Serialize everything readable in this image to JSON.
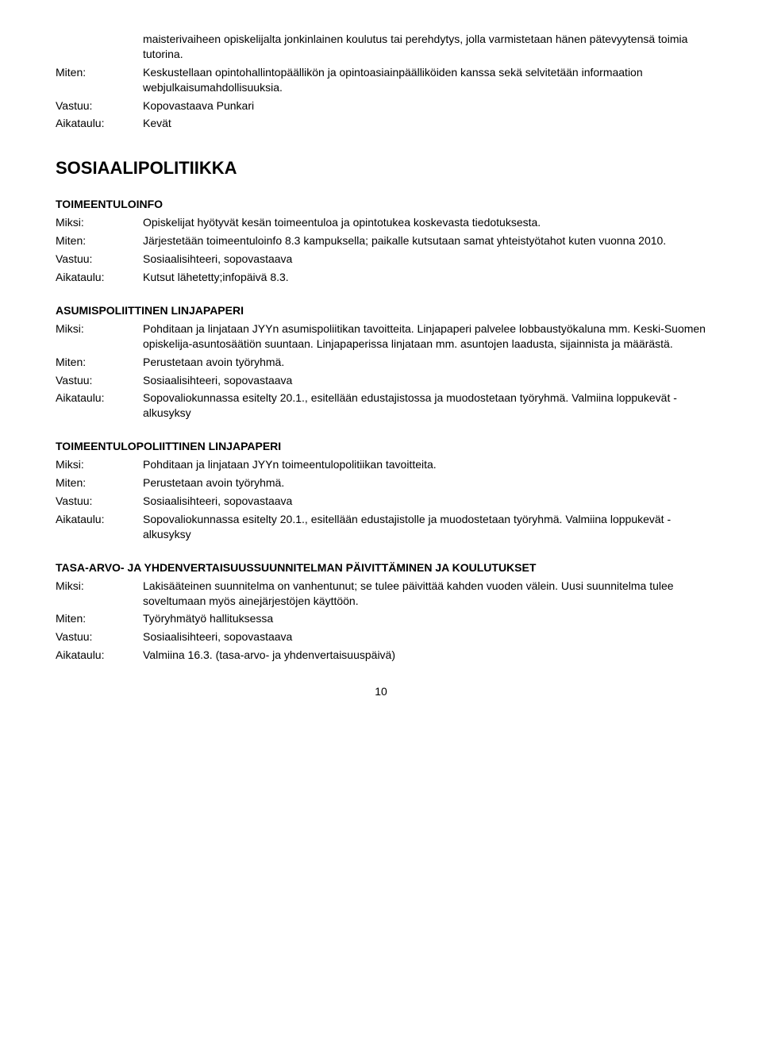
{
  "intro": {
    "rows": [
      {
        "label": "",
        "value": "maisterivaiheen opiskelijalta jonkinlainen koulutus tai perehdytys, jolla varmistetaan hänen pätevyytensä toimia tutorina."
      },
      {
        "label": "Miten:",
        "value": "Keskustellaan opintohallintopäällikön ja opintoasiainpäälliköiden kanssa sekä selvitetään informaation webjulkaisumahdollisuuksia."
      },
      {
        "label": "Vastuu:",
        "value": "Kopovastaava Punkari"
      },
      {
        "label": "Aikataulu:",
        "value": "Kevät"
      }
    ]
  },
  "main_heading": "SOSIAALIPOLITIIKKA",
  "sections": [
    {
      "title": "TOIMEENTULOINFO",
      "rows": [
        {
          "label": "Miksi:",
          "value": "Opiskelijat hyötyvät kesän toimeentuloa ja opintotukea koskevasta tiedotuksesta."
        },
        {
          "label": "Miten:",
          "value": "Järjestetään toimeentuloinfo 8.3 kampuksella; paikalle kutsutaan samat yhteistyötahot kuten vuonna 2010."
        },
        {
          "label": "Vastuu:",
          "value": "Sosiaalisihteeri, sopovastaava"
        },
        {
          "label": "Aikataulu:",
          "value": "Kutsut lähetetty;infopäivä 8.3."
        }
      ]
    },
    {
      "title": "ASUMISPOLIITTINEN LINJAPAPERI",
      "rows": [
        {
          "label": "Miksi:",
          "value": "Pohditaan ja linjataan JYYn asumispoliitikan tavoitteita. Linjapaperi palvelee lobbaustyökaluna mm. Keski-Suomen opiskelija-asuntosäätiön suuntaan. Linjapaperissa linjataan mm. asuntojen laadusta, sijainnista ja määrästä."
        },
        {
          "label": "Miten:",
          "value": "Perustetaan avoin työryhmä."
        },
        {
          "label": "Vastuu:",
          "value": "Sosiaalisihteeri, sopovastaava"
        },
        {
          "label": "Aikataulu:",
          "value": "Sopovaliokunnassa esitelty 20.1., esitellään edustajistossa ja muodostetaan työryhmä. Valmiina loppukevät - alkusyksy"
        }
      ]
    },
    {
      "title": "TOIMEENTULOPOLIITTINEN LINJAPAPERI",
      "rows": [
        {
          "label": "Miksi:",
          "value": "Pohditaan ja linjataan JYYn toimeentulopolitiikan tavoitteita."
        },
        {
          "label": "Miten:",
          "value": "Perustetaan avoin työryhmä."
        },
        {
          "label": "Vastuu:",
          "value": "Sosiaalisihteeri, sopovastaava"
        },
        {
          "label": "Aikataulu:",
          "value": "Sopovaliokunnassa esitelty 20.1., esitellään edustajistolle ja muodostetaan työryhmä. Valmiina loppukevät - alkusyksy"
        }
      ]
    },
    {
      "title": "TASA-ARVO- JA YHDENVERTAISUUSSUUNNITELMAN PÄIVITTÄMINEN JA KOULUTUKSET",
      "rows": [
        {
          "label": "Miksi:",
          "value": "Lakisääteinen suunnitelma on vanhentunut; se tulee päivittää kahden vuoden välein. Uusi suunnitelma tulee soveltumaan myös ainejärjestöjen käyttöön."
        },
        {
          "label": "Miten:",
          "value": "Työryhmätyö hallituksessa"
        },
        {
          "label": "Vastuu:",
          "value": "Sosiaalisihteeri, sopovastaava"
        },
        {
          "label": "Aikataulu:",
          "value": "Valmiina 16.3. (tasa-arvo- ja yhdenvertaisuuspäivä)"
        }
      ]
    }
  ],
  "page_number": "10"
}
